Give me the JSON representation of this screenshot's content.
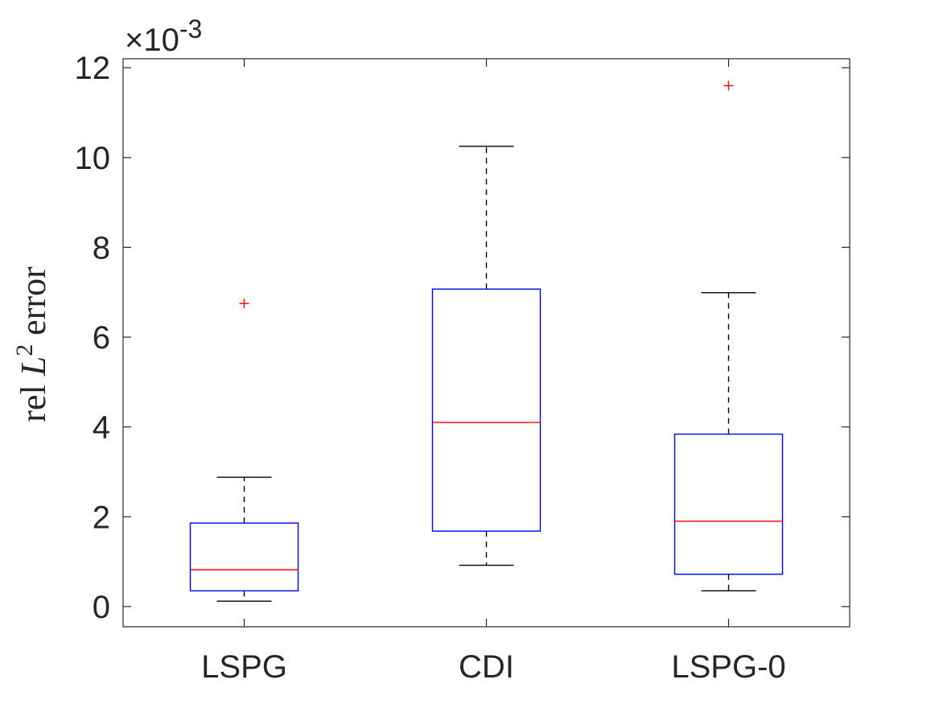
{
  "chart_data": {
    "type": "box",
    "title": "",
    "xlabel": "",
    "ylabel": {
      "prefix": "rel ",
      "symbol": "L",
      "superscript": "2",
      "suffix": " error"
    },
    "y_scale_label": {
      "mult": "×10",
      "exponent": "-3"
    },
    "ylim": [
      -0.45,
      12.2
    ],
    "yticks": [
      0,
      2,
      4,
      6,
      8,
      10,
      12
    ],
    "ytick_labels": [
      "0",
      "2",
      "4",
      "6",
      "8",
      "10",
      "12"
    ],
    "categories": [
      "LSPG",
      "CDI",
      "LSPG-0"
    ],
    "boxes": [
      {
        "name": "LSPG",
        "whisker_low": 0.12,
        "q1": 0.35,
        "median": 0.82,
        "q3": 1.86,
        "whisker_high": 2.88,
        "outliers": [
          6.75
        ]
      },
      {
        "name": "CDI",
        "whisker_low": 0.92,
        "q1": 1.68,
        "median": 4.1,
        "q3": 7.07,
        "whisker_high": 10.25,
        "outliers": []
      },
      {
        "name": "LSPG-0",
        "whisker_low": 0.35,
        "q1": 0.72,
        "median": 1.9,
        "q3": 3.84,
        "whisker_high": 6.99,
        "outliers": [
          11.6
        ]
      }
    ],
    "colors": {
      "box": "#0000ff",
      "median": "#ff0000",
      "whisker": "#000000",
      "outlier": "#ff0000",
      "axis": "#262626"
    }
  }
}
